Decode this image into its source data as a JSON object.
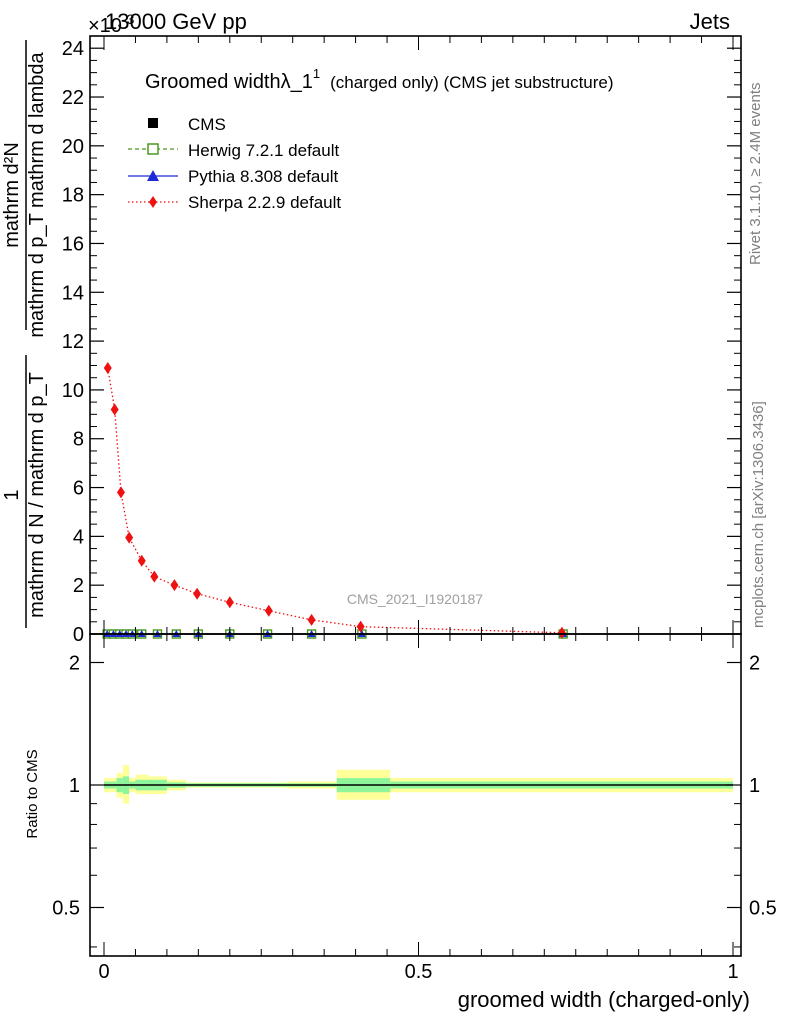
{
  "header": {
    "energy_label": "13000 GeV pp",
    "exponent_label": "×10",
    "exponent_sup": "-3",
    "category_label": "Jets"
  },
  "side_text": {
    "rivet": "Rivet 3.1.10, ≥ 2.4M events",
    "mcplots": "mcplots.cern.ch [arXiv:1306.3436]"
  },
  "legend_title": {
    "main": "Groomed width",
    "symbol": "λ_1",
    "sup": "1",
    "suffix": "(charged only) (CMS jet substructure)"
  },
  "watermark": "CMS_2021_I1920187",
  "ylabel_main": {
    "numerator": "1",
    "denominator": "mathrm d N / mathrm d p_T",
    "numerator2": "mathrm d²N",
    "denominator2": "mathrm d p_T mathrm d lambda"
  },
  "ylabel_ratio": "Ratio to CMS",
  "xlabel": "groomed width (charged-only)",
  "chart_data": {
    "type": "scatter",
    "x_label": "groomed width (charged-only)",
    "xlim": [
      0,
      1
    ],
    "main_panel": {
      "y_multiplier": "×10^-3",
      "ylim": [
        0,
        24.5
      ],
      "y_ticks": [
        0,
        2,
        4,
        6,
        8,
        10,
        12,
        14,
        16,
        18,
        20,
        22,
        24
      ],
      "series": [
        {
          "name": "CMS",
          "marker": "square",
          "color": "#000000",
          "x": [
            0.005,
            0.015,
            0.025,
            0.035,
            0.045,
            0.06,
            0.085,
            0.115,
            0.15,
            0.2,
            0.26,
            0.33,
            0.41,
            0.73
          ],
          "y": [
            0.0,
            0.0,
            0.0,
            0.0,
            0.0,
            0.0,
            0.0,
            0.0,
            0.0,
            0.0,
            0.0,
            0.0,
            0.0,
            0.0
          ]
        },
        {
          "name": "Herwig 7.2.1 default",
          "marker": "open-square",
          "color": "#4a9a1e",
          "linestyle": "dashed",
          "x": [
            0.005,
            0.015,
            0.025,
            0.035,
            0.045,
            0.06,
            0.085,
            0.115,
            0.15,
            0.2,
            0.26,
            0.33,
            0.41,
            0.73
          ],
          "y": [
            0.0,
            0.0,
            0.0,
            0.0,
            0.0,
            0.0,
            0.0,
            0.0,
            0.0,
            0.0,
            0.0,
            0.0,
            0.0,
            0.0
          ]
        },
        {
          "name": "Pythia 8.308 default",
          "marker": "triangle",
          "color": "#1f2ad6",
          "linestyle": "solid",
          "x": [
            0.005,
            0.015,
            0.025,
            0.035,
            0.045,
            0.06,
            0.085,
            0.115,
            0.15,
            0.2,
            0.26,
            0.33,
            0.41,
            0.73
          ],
          "y": [
            0.0,
            0.0,
            0.0,
            0.0,
            0.0,
            0.0,
            0.0,
            0.0,
            0.0,
            0.0,
            0.0,
            0.0,
            0.0,
            0.0
          ]
        },
        {
          "name": "Sherpa 2.2.9 default",
          "marker": "diamond",
          "color": "#ee1111",
          "linestyle": "dotted",
          "x": [
            0.006,
            0.017,
            0.027,
            0.04,
            0.06,
            0.08,
            0.112,
            0.148,
            0.2,
            0.262,
            0.33,
            0.408,
            0.728
          ],
          "y": [
            10.9,
            9.2,
            5.8,
            3.95,
            3.0,
            2.35,
            2.0,
            1.65,
            1.3,
            0.95,
            0.58,
            0.3,
            0.05
          ]
        }
      ]
    },
    "ratio_panel": {
      "ylim": [
        0.38,
        2.35
      ],
      "log_scale": true,
      "y_ticks": [
        0.5,
        1,
        2
      ],
      "reference_line": 1,
      "band_colors": {
        "inner": "#8ff59a",
        "outer": "#ffff99"
      },
      "bands": [
        {
          "x0": 0.0,
          "x1": 0.02,
          "inner": [
            0.98,
            1.02
          ],
          "outer": [
            0.96,
            1.04
          ]
        },
        {
          "x0": 0.02,
          "x1": 0.03,
          "inner": [
            0.96,
            1.04
          ],
          "outer": [
            0.93,
            1.07
          ]
        },
        {
          "x0": 0.03,
          "x1": 0.04,
          "inner": [
            0.95,
            1.05
          ],
          "outer": [
            0.9,
            1.12
          ]
        },
        {
          "x0": 0.04,
          "x1": 0.05,
          "inner": [
            0.98,
            1.02
          ],
          "outer": [
            0.96,
            1.04
          ]
        },
        {
          "x0": 0.05,
          "x1": 0.07,
          "inner": [
            0.97,
            1.03
          ],
          "outer": [
            0.95,
            1.06
          ]
        },
        {
          "x0": 0.07,
          "x1": 0.1,
          "inner": [
            0.97,
            1.03
          ],
          "outer": [
            0.95,
            1.05
          ]
        },
        {
          "x0": 0.1,
          "x1": 0.13,
          "inner": [
            0.985,
            1.015
          ],
          "outer": [
            0.97,
            1.03
          ]
        },
        {
          "x0": 0.13,
          "x1": 0.17,
          "inner": [
            0.99,
            1.01
          ],
          "outer": [
            0.985,
            1.015
          ]
        },
        {
          "x0": 0.17,
          "x1": 0.23,
          "inner": [
            0.99,
            1.01
          ],
          "outer": [
            0.985,
            1.015
          ]
        },
        {
          "x0": 0.23,
          "x1": 0.29,
          "inner": [
            0.99,
            1.01
          ],
          "outer": [
            0.985,
            1.015
          ]
        },
        {
          "x0": 0.29,
          "x1": 0.37,
          "inner": [
            0.99,
            1.01
          ],
          "outer": [
            0.98,
            1.02
          ]
        },
        {
          "x0": 0.37,
          "x1": 0.455,
          "inner": [
            0.96,
            1.04
          ],
          "outer": [
            0.92,
            1.09
          ]
        },
        {
          "x0": 0.455,
          "x1": 1.0,
          "inner": [
            0.98,
            1.02
          ],
          "outer": [
            0.96,
            1.04
          ]
        }
      ]
    },
    "colors": {
      "axis": "#000000",
      "side_text": "#808080",
      "watermark": "#a0a0a0"
    }
  }
}
